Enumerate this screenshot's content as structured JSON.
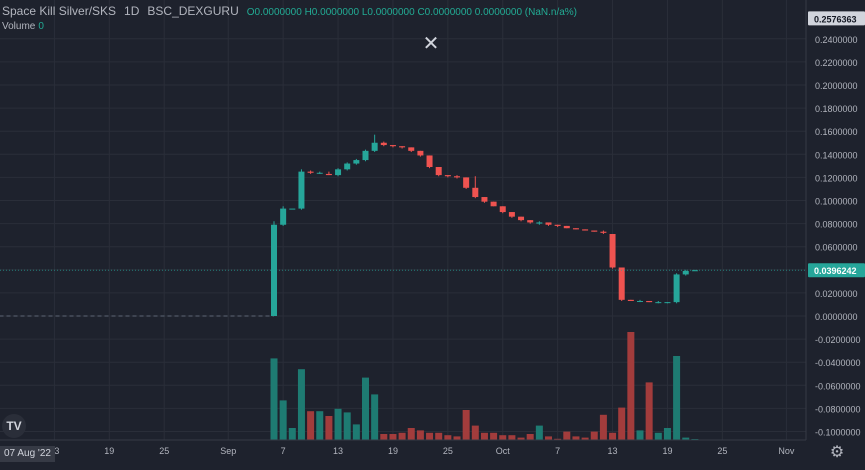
{
  "legend": {
    "symbol": "Space Kill Silver/SKS",
    "interval": "1D",
    "exchange": "BSC_DEXGURU",
    "ohlc_text": "O0.0000000 H0.0000000 L0.0000000 C0.0000000 0.0000000 (NaN.n/a%)",
    "volume_label": "Volume",
    "volume_value": "0"
  },
  "close_glyph": "✕",
  "logo_text": "TV",
  "gear_glyph": "⚙",
  "date_tag": "07 Aug '22",
  "colors": {
    "bg": "#1e222d",
    "up": "#26a69a",
    "down": "#ef5350",
    "vol_up": "#1e7b72",
    "vol_down": "#a23c3c",
    "grid": "#2a2e39",
    "price_tag": "#26a69a"
  },
  "chart_data": {
    "type": "candlestick",
    "y_axis": {
      "labels": [
        "0.2400000",
        "0.2200000",
        "0.2000000",
        "0.1800000",
        "0.1600000",
        "0.1400000",
        "0.1200000",
        "0.1000000",
        "0.0800000",
        "0.0600000",
        "0.0400000",
        "0.0200000",
        "0.0000000",
        "-0.0200000",
        "-0.0400000",
        "-0.0600000",
        "-0.0800000",
        "-0.1000000"
      ],
      "values": [
        0.24,
        0.22,
        0.2,
        0.18,
        0.16,
        0.14,
        0.12,
        0.1,
        0.08,
        0.06,
        0.04,
        0.02,
        0.0,
        -0.02,
        -0.04,
        -0.06,
        -0.08,
        -0.1
      ],
      "top_tag": "0.2576363",
      "top_tag_value": 0.2576363,
      "last_tag": "0.0396242",
      "last_value": 0.0396242
    },
    "x_axis": {
      "labels": [
        "13",
        "19",
        "25",
        "Sep",
        "7",
        "13",
        "19",
        "25",
        "Oct",
        "7",
        "13",
        "19",
        "25",
        "Nov"
      ],
      "label_day_index": [
        6,
        12,
        18,
        25,
        31,
        37,
        43,
        49,
        55,
        61,
        67,
        73,
        79,
        86
      ]
    },
    "baseline_value": 0.0,
    "start_day_index": 0,
    "candles": [
      {
        "d": 30,
        "o": 0.0,
        "h": 0.082,
        "l": 0.0,
        "c": 0.079,
        "v": 0.068
      },
      {
        "d": 31,
        "o": 0.079,
        "h": 0.095,
        "l": 0.078,
        "c": 0.093,
        "v": 0.033
      },
      {
        "d": 32,
        "o": 0.093,
        "h": 0.093,
        "l": 0.093,
        "c": 0.093,
        "v": 0.01
      },
      {
        "d": 33,
        "o": 0.093,
        "h": 0.127,
        "l": 0.092,
        "c": 0.125,
        "v": 0.059
      },
      {
        "d": 34,
        "o": 0.125,
        "h": 0.126,
        "l": 0.123,
        "c": 0.124,
        "v": 0.024
      },
      {
        "d": 35,
        "o": 0.124,
        "h": 0.125,
        "l": 0.123,
        "c": 0.124,
        "v": 0.024
      },
      {
        "d": 36,
        "o": 0.123,
        "h": 0.125,
        "l": 0.122,
        "c": 0.122,
        "v": 0.02
      },
      {
        "d": 37,
        "o": 0.122,
        "h": 0.128,
        "l": 0.121,
        "c": 0.127,
        "v": 0.026
      },
      {
        "d": 38,
        "o": 0.127,
        "h": 0.133,
        "l": 0.126,
        "c": 0.132,
        "v": 0.023
      },
      {
        "d": 39,
        "o": 0.132,
        "h": 0.136,
        "l": 0.131,
        "c": 0.135,
        "v": 0.013
      },
      {
        "d": 40,
        "o": 0.135,
        "h": 0.144,
        "l": 0.134,
        "c": 0.143,
        "v": 0.052
      },
      {
        "d": 41,
        "o": 0.143,
        "h": 0.157,
        "l": 0.142,
        "c": 0.15,
        "v": 0.038
      },
      {
        "d": 42,
        "o": 0.15,
        "h": 0.151,
        "l": 0.147,
        "c": 0.148,
        "v": 0.005
      },
      {
        "d": 43,
        "o": 0.148,
        "h": 0.148,
        "l": 0.146,
        "c": 0.147,
        "v": 0.005
      },
      {
        "d": 44,
        "o": 0.147,
        "h": 0.147,
        "l": 0.145,
        "c": 0.146,
        "v": 0.006
      },
      {
        "d": 45,
        "o": 0.146,
        "h": 0.146,
        "l": 0.142,
        "c": 0.143,
        "v": 0.01
      },
      {
        "d": 46,
        "o": 0.143,
        "h": 0.143,
        "l": 0.138,
        "c": 0.139,
        "v": 0.008
      },
      {
        "d": 47,
        "o": 0.139,
        "h": 0.139,
        "l": 0.128,
        "c": 0.129,
        "v": 0.006
      },
      {
        "d": 48,
        "o": 0.129,
        "h": 0.129,
        "l": 0.121,
        "c": 0.122,
        "v": 0.006
      },
      {
        "d": 49,
        "o": 0.122,
        "h": 0.122,
        "l": 0.12,
        "c": 0.121,
        "v": 0.004
      },
      {
        "d": 50,
        "o": 0.121,
        "h": 0.122,
        "l": 0.119,
        "c": 0.12,
        "v": 0.003
      },
      {
        "d": 51,
        "o": 0.12,
        "h": 0.12,
        "l": 0.11,
        "c": 0.111,
        "v": 0.025
      },
      {
        "d": 52,
        "o": 0.111,
        "h": 0.121,
        "l": 0.102,
        "c": 0.103,
        "v": 0.012
      },
      {
        "d": 53,
        "o": 0.103,
        "h": 0.103,
        "l": 0.098,
        "c": 0.099,
        "v": 0.006
      },
      {
        "d": 54,
        "o": 0.099,
        "h": 0.099,
        "l": 0.095,
        "c": 0.095,
        "v": 0.006
      },
      {
        "d": 55,
        "o": 0.095,
        "h": 0.095,
        "l": 0.089,
        "c": 0.09,
        "v": 0.004
      },
      {
        "d": 56,
        "o": 0.09,
        "h": 0.09,
        "l": 0.085,
        "c": 0.086,
        "v": 0.004
      },
      {
        "d": 57,
        "o": 0.086,
        "h": 0.086,
        "l": 0.082,
        "c": 0.083,
        "v": 0.002
      },
      {
        "d": 58,
        "o": 0.083,
        "h": 0.083,
        "l": 0.08,
        "c": 0.081,
        "v": 0.005
      },
      {
        "d": 59,
        "o": 0.08,
        "h": 0.082,
        "l": 0.079,
        "c": 0.081,
        "v": 0.012
      },
      {
        "d": 60,
        "o": 0.081,
        "h": 0.081,
        "l": 0.078,
        "c": 0.079,
        "v": 0.003
      },
      {
        "d": 61,
        "o": 0.079,
        "h": 0.079,
        "l": 0.077,
        "c": 0.078,
        "v": 0.001
      },
      {
        "d": 62,
        "o": 0.078,
        "h": 0.078,
        "l": 0.076,
        "c": 0.076,
        "v": 0.007
      },
      {
        "d": 63,
        "o": 0.076,
        "h": 0.076,
        "l": 0.075,
        "c": 0.075,
        "v": 0.003
      },
      {
        "d": 64,
        "o": 0.075,
        "h": 0.075,
        "l": 0.074,
        "c": 0.074,
        "v": 0.002
      },
      {
        "d": 65,
        "o": 0.074,
        "h": 0.074,
        "l": 0.073,
        "c": 0.073,
        "v": 0.007
      },
      {
        "d": 66,
        "o": 0.073,
        "h": 0.074,
        "l": 0.071,
        "c": 0.072,
        "v": 0.021
      },
      {
        "d": 67,
        "o": 0.071,
        "h": 0.071,
        "l": 0.041,
        "c": 0.042,
        "v": 0.006
      },
      {
        "d": 68,
        "o": 0.042,
        "h": 0.042,
        "l": 0.013,
        "c": 0.014,
        "v": 0.027
      },
      {
        "d": 69,
        "o": 0.014,
        "h": 0.014,
        "l": 0.013,
        "c": 0.013,
        "v": 0.09
      },
      {
        "d": 70,
        "o": 0.013,
        "h": 0.014,
        "l": 0.012,
        "c": 0.013,
        "v": 0.008
      },
      {
        "d": 71,
        "o": 0.013,
        "h": 0.013,
        "l": 0.012,
        "c": 0.012,
        "v": 0.048
      },
      {
        "d": 72,
        "o": 0.012,
        "h": 0.013,
        "l": 0.011,
        "c": 0.012,
        "v": 0.006
      },
      {
        "d": 73,
        "o": 0.012,
        "h": 0.012,
        "l": 0.011,
        "c": 0.012,
        "v": 0.01
      },
      {
        "d": 74,
        "o": 0.012,
        "h": 0.037,
        "l": 0.011,
        "c": 0.036,
        "v": 0.07
      },
      {
        "d": 75,
        "o": 0.036,
        "h": 0.04,
        "l": 0.035,
        "c": 0.039,
        "v": 0.002
      },
      {
        "d": 76,
        "o": 0.039,
        "h": 0.04,
        "l": 0.039,
        "c": 0.0396242,
        "v": 0.0005
      }
    ]
  }
}
